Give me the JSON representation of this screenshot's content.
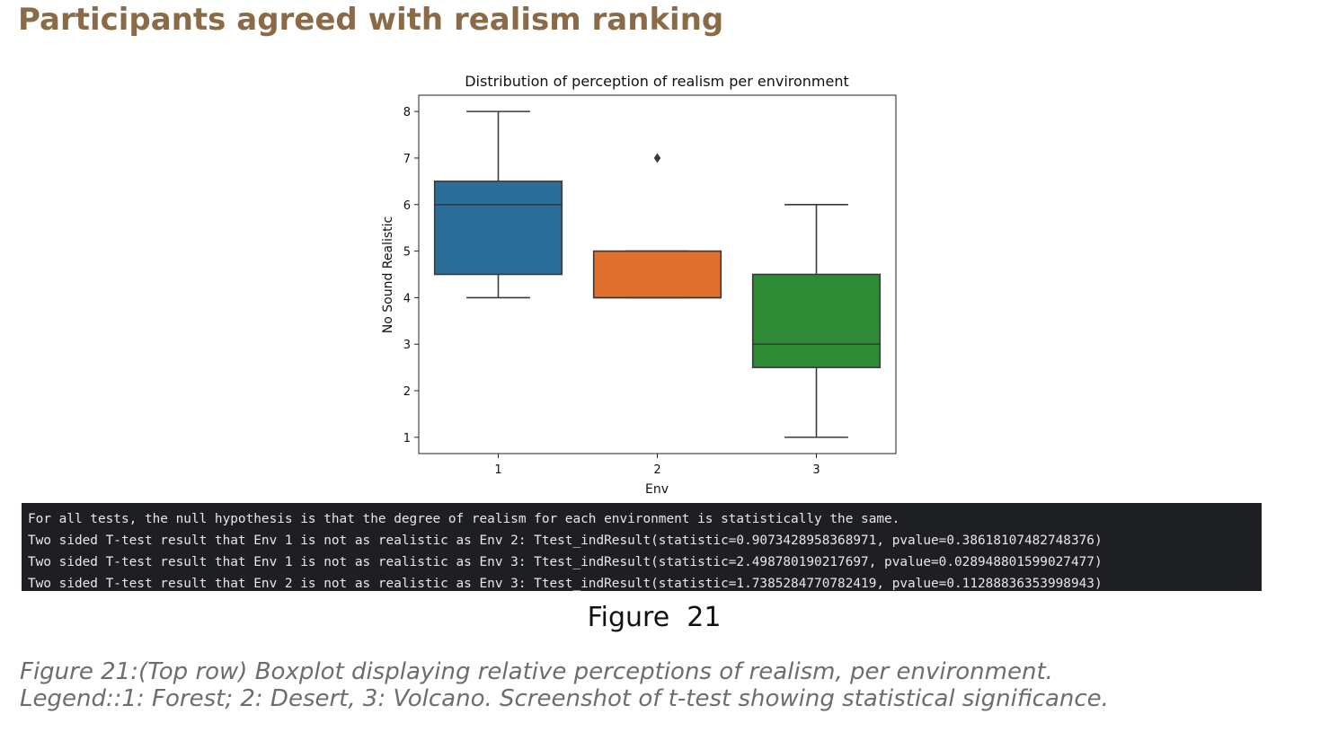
{
  "heading": "Participants agreed with realism ranking",
  "chart_data": {
    "type": "boxplot",
    "title": "Distribution of perception of realism per environment",
    "xlabel": "Env",
    "ylabel": "No Sound Realistic",
    "categories": [
      "1",
      "2",
      "3"
    ],
    "y_ticks": [
      "1",
      "2",
      "3",
      "4",
      "5",
      "6",
      "7",
      "8"
    ],
    "ylim": [
      0.65,
      8.35
    ],
    "grid": false,
    "boxes": [
      {
        "category": "1",
        "whisker_low": 4,
        "q1": 4.5,
        "median": 6,
        "q3": 6.5,
        "whisker_high": 8,
        "outliers": [],
        "color": "#2c6e9a"
      },
      {
        "category": "2",
        "whisker_low": 4,
        "q1": 4,
        "median": 4,
        "q3": 5,
        "whisker_high": 5,
        "outliers": [
          7
        ],
        "color": "#e0702e"
      },
      {
        "category": "3",
        "whisker_low": 1,
        "q1": 2.5,
        "median": 3,
        "q3": 4.5,
        "whisker_high": 6,
        "outliers": [],
        "color": "#2e8b35"
      }
    ]
  },
  "console": {
    "lines": [
      "For all tests, the null hypothesis is that the degree of realism for each environment is statistically the same.",
      "Two sided T-test result that Env 1 is not as realistic as Env 2: Ttest_indResult(statistic=0.9073428958368971, pvalue=0.38618107482748376)",
      "Two sided T-test result that Env 1 is not as realistic as Env 3: Ttest_indResult(statistic=2.498780190217697, pvalue=0.028948801599027477)",
      "Two sided T-test result that Env 2 is not as realistic as Env 3: Ttest_indResult(statistic=1.7385284770782419, pvalue=0.11288836353998943)"
    ]
  },
  "figure_label": "Figure  21",
  "caption": {
    "line1": "Figure 21:(Top row) Boxplot displaying relative perceptions of realism, per environment.",
    "line2": "Legend::1: Forest; 2: Desert, 3: Volcano. Screenshot of t-test showing statistical significance."
  }
}
